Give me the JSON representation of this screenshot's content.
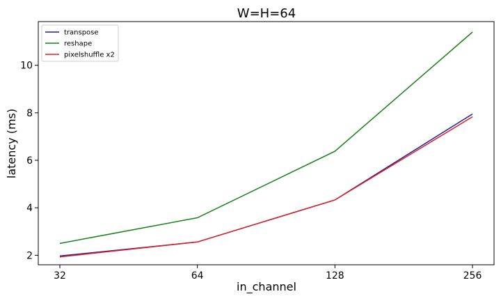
{
  "chart_data": {
    "type": "line",
    "title": "W=H=64",
    "xlabel": "in_channel",
    "ylabel": "latency (ms)",
    "x_scale": "log2",
    "x": [
      32,
      64,
      128,
      256
    ],
    "x_tick_labels": [
      "32",
      "64",
      "128",
      "256"
    ],
    "ylim": [
      1.6,
      11.84
    ],
    "y_ticks": [
      2,
      4,
      6,
      8,
      10
    ],
    "y_tick_labels": [
      "2",
      "4",
      "6",
      "8",
      "10"
    ],
    "legend_position": "top-left",
    "grid": false,
    "series": [
      {
        "name": "transpose",
        "color": "#1f1f9a",
        "values": [
          1.97,
          2.56,
          4.33,
          7.95
        ]
      },
      {
        "name": "reshape",
        "color": "#1a7f1a",
        "values": [
          2.5,
          3.58,
          6.38,
          11.4
        ]
      },
      {
        "name": "pixelshuffle x2",
        "color": "#e02020",
        "values": [
          1.93,
          2.56,
          4.33,
          7.83
        ]
      }
    ]
  }
}
